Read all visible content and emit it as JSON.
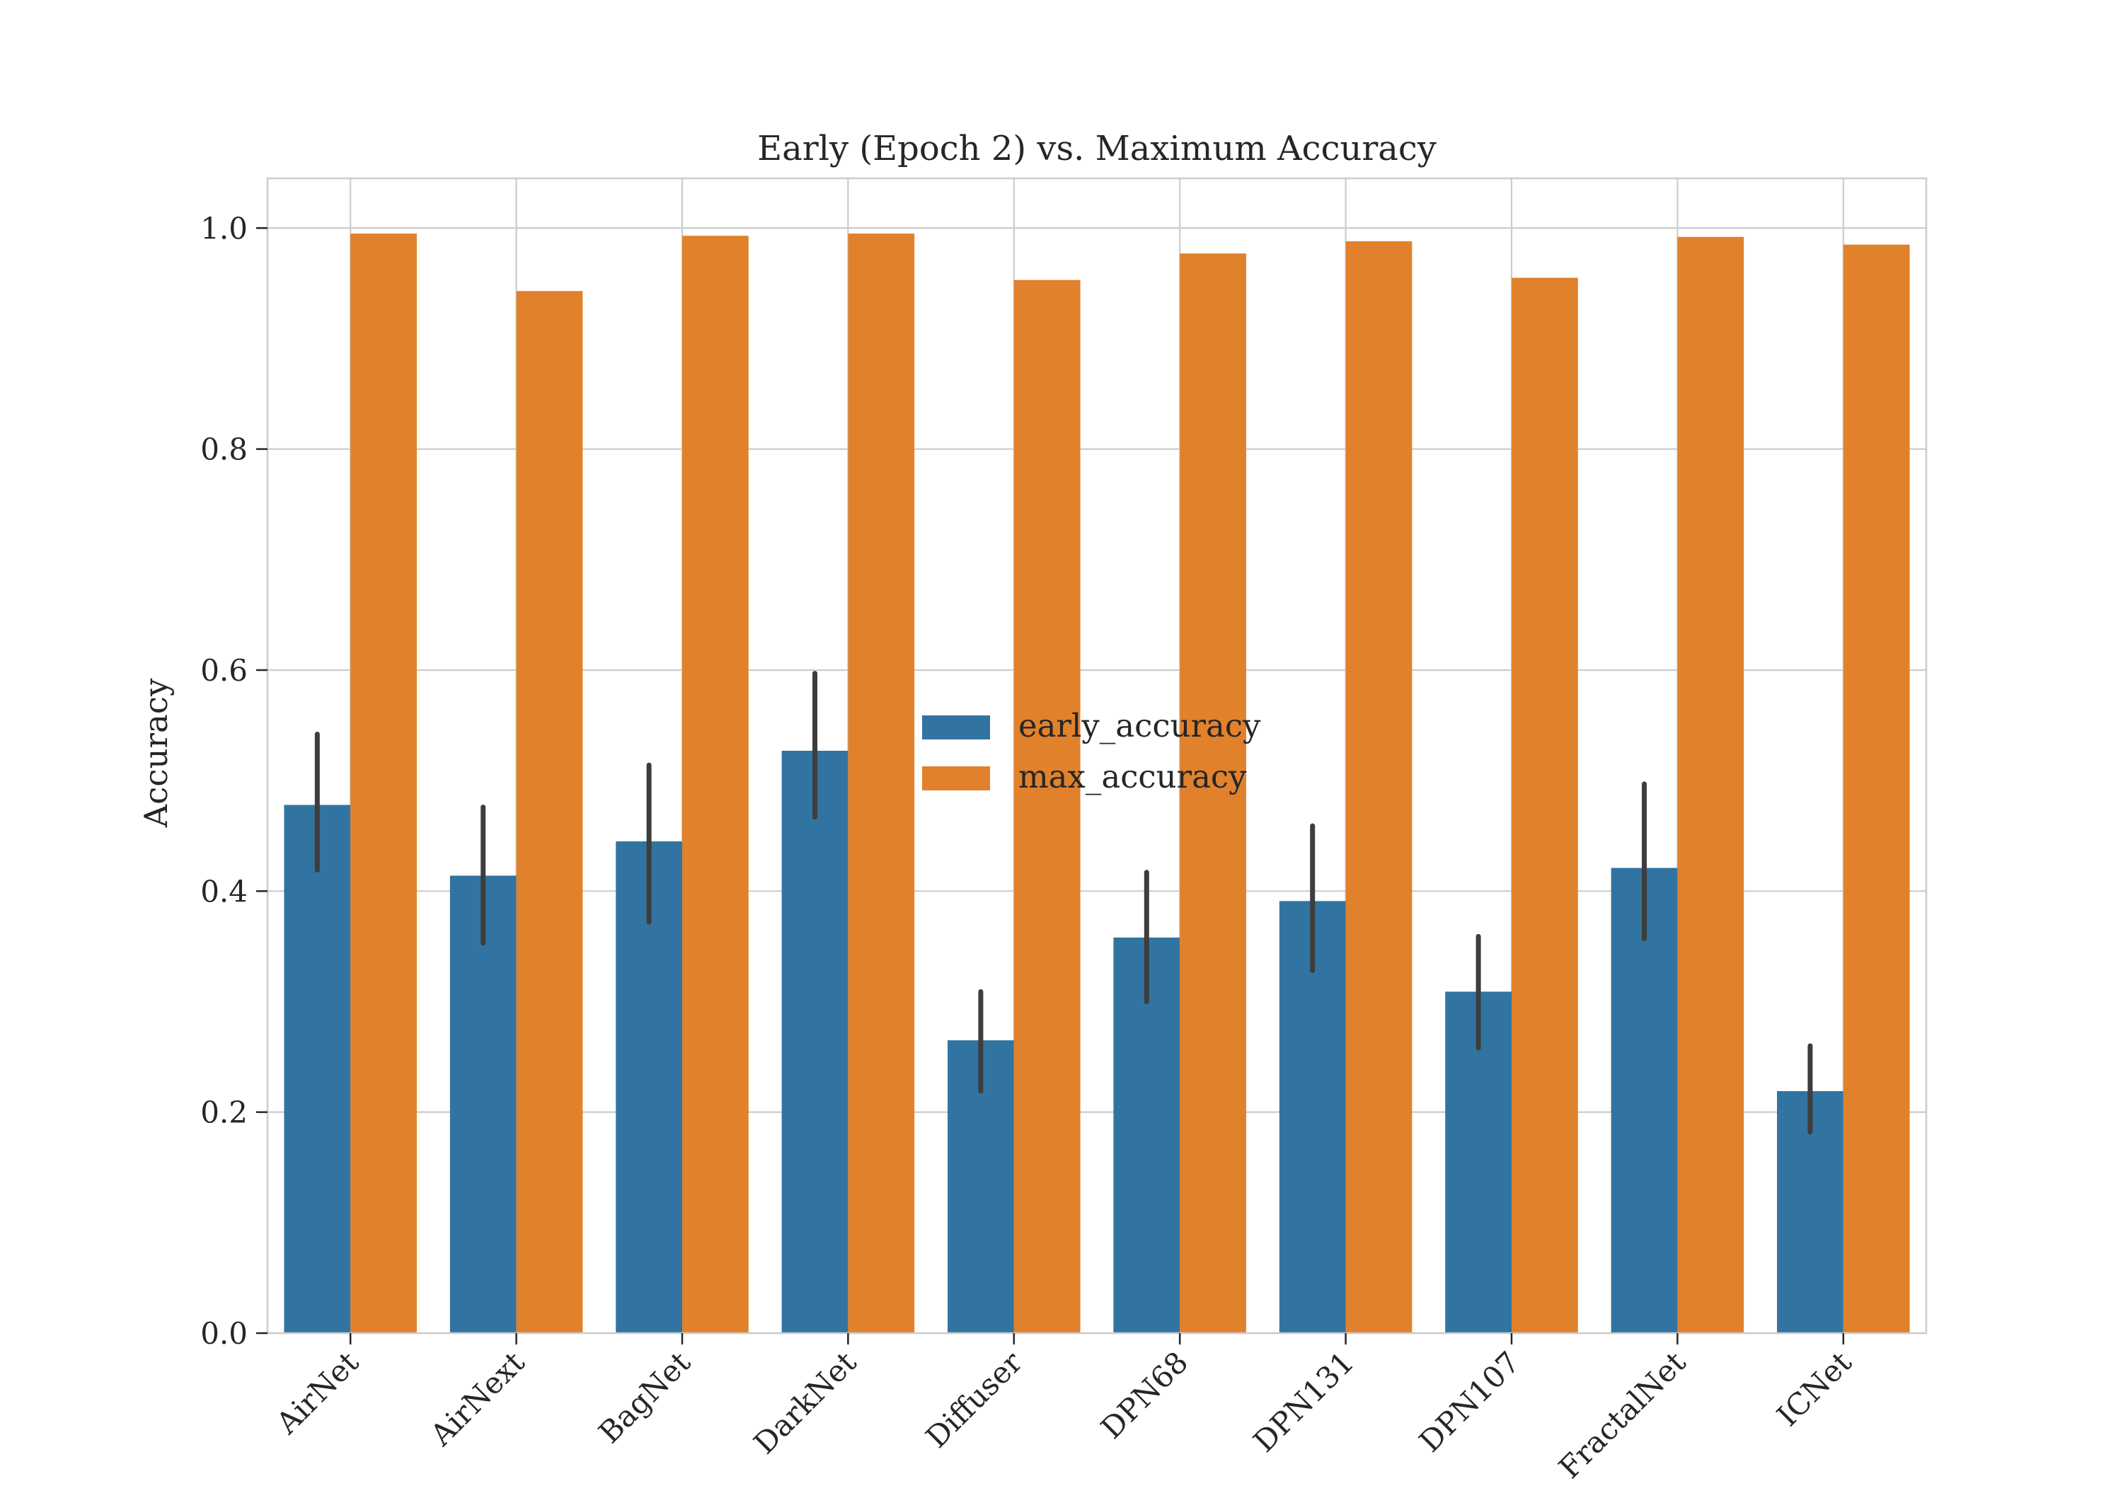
{
  "chart_data": {
    "type": "bar",
    "title": "Early (Epoch 2) vs. Maximum Accuracy",
    "xlabel": "",
    "ylabel": "Accuracy",
    "ylim": [
      0,
      1.045
    ],
    "yticks": [
      0.0,
      0.2,
      0.4,
      0.6,
      0.8,
      1.0
    ],
    "ytick_labels": [
      "0.0",
      "0.2",
      "0.4",
      "0.6",
      "0.8",
      "1.0"
    ],
    "grid": true,
    "legend_position": "center",
    "categories": [
      "AirNet",
      "AirNext",
      "BagNet",
      "DarkNet",
      "Diffuser",
      "DPN68",
      "DPN131",
      "DPN107",
      "FractalNet",
      "ICNet"
    ],
    "series": [
      {
        "name": "early_accuracy",
        "color": "#3274a1",
        "values": [
          0.478,
          0.414,
          0.445,
          0.527,
          0.265,
          0.358,
          0.391,
          0.309,
          0.421,
          0.219
        ],
        "error_low": [
          0.419,
          0.353,
          0.372,
          0.467,
          0.219,
          0.3,
          0.328,
          0.258,
          0.357,
          0.182
        ],
        "error_high": [
          0.542,
          0.476,
          0.514,
          0.597,
          0.309,
          0.417,
          0.459,
          0.359,
          0.497,
          0.26
        ]
      },
      {
        "name": "max_accuracy",
        "color": "#e1812c",
        "values": [
          0.995,
          0.943,
          0.993,
          0.995,
          0.953,
          0.977,
          0.988,
          0.955,
          0.992,
          0.985
        ]
      }
    ]
  }
}
